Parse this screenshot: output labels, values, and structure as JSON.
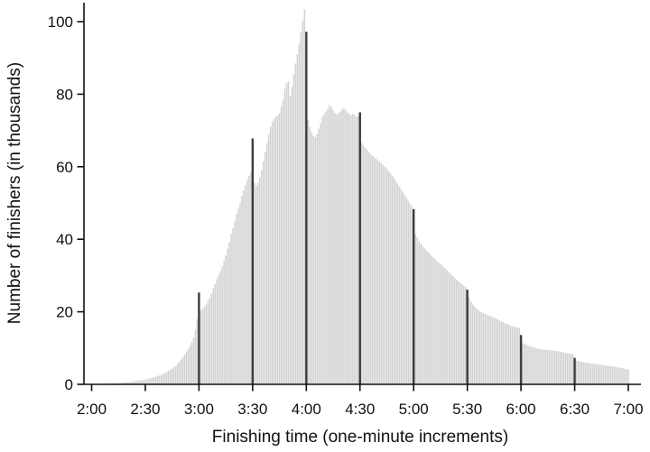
{
  "page": {
    "background": "#ffffff"
  },
  "chart_data": {
    "type": "bar",
    "title": "",
    "xlabel": "Finishing time (one-minute increments)",
    "ylabel": "Number of finishers (in thousands)",
    "grid": "off",
    "legend": "none",
    "x_unit": "finishing time in one-minute increments",
    "y_unit": "thousands of finishers",
    "x_start_minute": 120,
    "x_end_minute": 420,
    "x_tick_minutes": [
      120,
      150,
      180,
      210,
      240,
      270,
      300,
      330,
      360,
      390,
      420
    ],
    "x_tick_labels": [
      "2:00",
      "2:30",
      "3:00",
      "3:30",
      "4:00",
      "4:30",
      "5:00",
      "5:30",
      "6:00",
      "6:30",
      "7:00"
    ],
    "y_ticks": [
      0,
      20,
      40,
      60,
      80,
      100
    ],
    "y_tick_labels": [
      "0",
      "20",
      "40",
      "60",
      "80",
      "100"
    ],
    "ylim": [
      0,
      105
    ],
    "milestone_minutes": [
      180,
      210,
      240,
      270,
      300,
      330,
      360,
      390
    ],
    "values_per_minute": [
      0.05,
      0.05,
      0.06,
      0.07,
      0.08,
      0.09,
      0.1,
      0.12,
      0.14,
      0.16,
      0.18,
      0.2,
      0.23,
      0.26,
      0.3,
      0.34,
      0.38,
      0.42,
      0.47,
      0.52,
      0.58,
      0.64,
      0.7,
      0.77,
      0.84,
      0.92,
      1.0,
      1.08,
      1.16,
      1.25,
      1.35,
      1.45,
      1.55,
      1.7,
      1.85,
      2.0,
      2.15,
      2.3,
      2.5,
      2.7,
      2.9,
      3.1,
      3.4,
      3.7,
      4.0,
      4.3,
      4.7,
      5.1,
      5.6,
      6.2,
      6.8,
      7.4,
      8.2,
      9.0,
      9.8,
      10.6,
      11.6,
      12.8,
      15.0,
      18.0,
      25.3,
      20.3,
      20.8,
      21.4,
      22.1,
      23.0,
      23.8,
      25.0,
      26.5,
      27.6,
      29.0,
      30.0,
      31.2,
      32.5,
      34.0,
      35.6,
      37.4,
      39.2,
      41.5,
      43.0,
      45.0,
      47.0,
      48.5,
      50.0,
      52.0,
      53.5,
      55.0,
      56.5,
      57.5,
      58.5,
      67.8,
      55.5,
      54.8,
      55.5,
      57.0,
      59.0,
      61.5,
      64.0,
      66.5,
      69.0,
      71.0,
      72.5,
      73.2,
      73.8,
      74.2,
      74.8,
      76.5,
      78.5,
      81.5,
      83.0,
      83.5,
      79.5,
      82.0,
      85.5,
      88.5,
      91.0,
      94.0,
      97.0,
      100.3,
      103.4,
      97.2,
      73.0,
      71.0,
      69.5,
      68.5,
      68.2,
      69.0,
      70.5,
      72.0,
      73.8,
      74.5,
      75.2,
      76.0,
      77.0,
      76.5,
      75.5,
      74.8,
      74.4,
      74.8,
      75.2,
      75.8,
      76.2,
      75.6,
      75.0,
      74.6,
      74.2,
      74.6,
      74.2,
      73.8,
      74.0,
      75.0,
      66.5,
      65.8,
      65.2,
      64.6,
      64.0,
      63.5,
      63.0,
      62.6,
      62.2,
      61.8,
      61.4,
      61.0,
      60.5,
      60.0,
      59.4,
      58.8,
      58.2,
      57.6,
      57.0,
      56.2,
      55.4,
      54.6,
      53.8,
      53.0,
      52.2,
      51.4,
      50.6,
      49.8,
      49.0,
      48.3,
      41.5,
      40.5,
      39.5,
      38.8,
      38.2,
      37.6,
      37.0,
      36.5,
      36.0,
      35.5,
      35.0,
      34.5,
      34.0,
      33.6,
      33.2,
      32.8,
      32.3,
      31.8,
      31.3,
      30.8,
      30.3,
      29.8,
      29.3,
      28.8,
      28.4,
      28.0,
      27.6,
      27.2,
      26.8,
      26.1,
      24.0,
      22.8,
      22.0,
      21.4,
      20.9,
      20.5,
      20.2,
      19.9,
      19.6,
      19.4,
      19.2,
      19.0,
      18.8,
      18.6,
      18.4,
      18.2,
      17.9,
      17.6,
      17.3,
      17.1,
      16.9,
      16.7,
      16.5,
      16.3,
      16.1,
      15.9,
      15.8,
      15.7,
      15.6,
      13.6,
      11.4,
      11.1,
      10.9,
      10.7,
      10.5,
      10.3,
      10.2,
      10.0,
      9.9,
      9.8,
      9.7,
      9.6,
      9.55,
      9.5,
      9.45,
      9.4,
      9.35,
      9.3,
      9.25,
      9.2,
      9.1,
      9.0,
      8.9,
      8.8,
      8.7,
      8.6,
      8.5,
      8.4,
      8.3,
      7.3,
      6.5,
      6.4,
      6.3,
      6.2,
      6.1,
      6.0,
      6.0,
      5.9,
      5.8,
      5.7,
      5.6,
      5.6,
      5.5,
      5.4,
      5.4,
      5.3,
      5.2,
      5.2,
      5.1,
      5.0,
      4.9,
      4.9,
      4.8,
      4.7,
      4.6,
      4.5,
      4.4,
      4.3,
      4.2,
      4.1
    ],
    "colors": {
      "bar": "#d3d3d3",
      "milestone_bar": "#3d3d3d",
      "axis": "#111111",
      "text": "#111111"
    }
  }
}
